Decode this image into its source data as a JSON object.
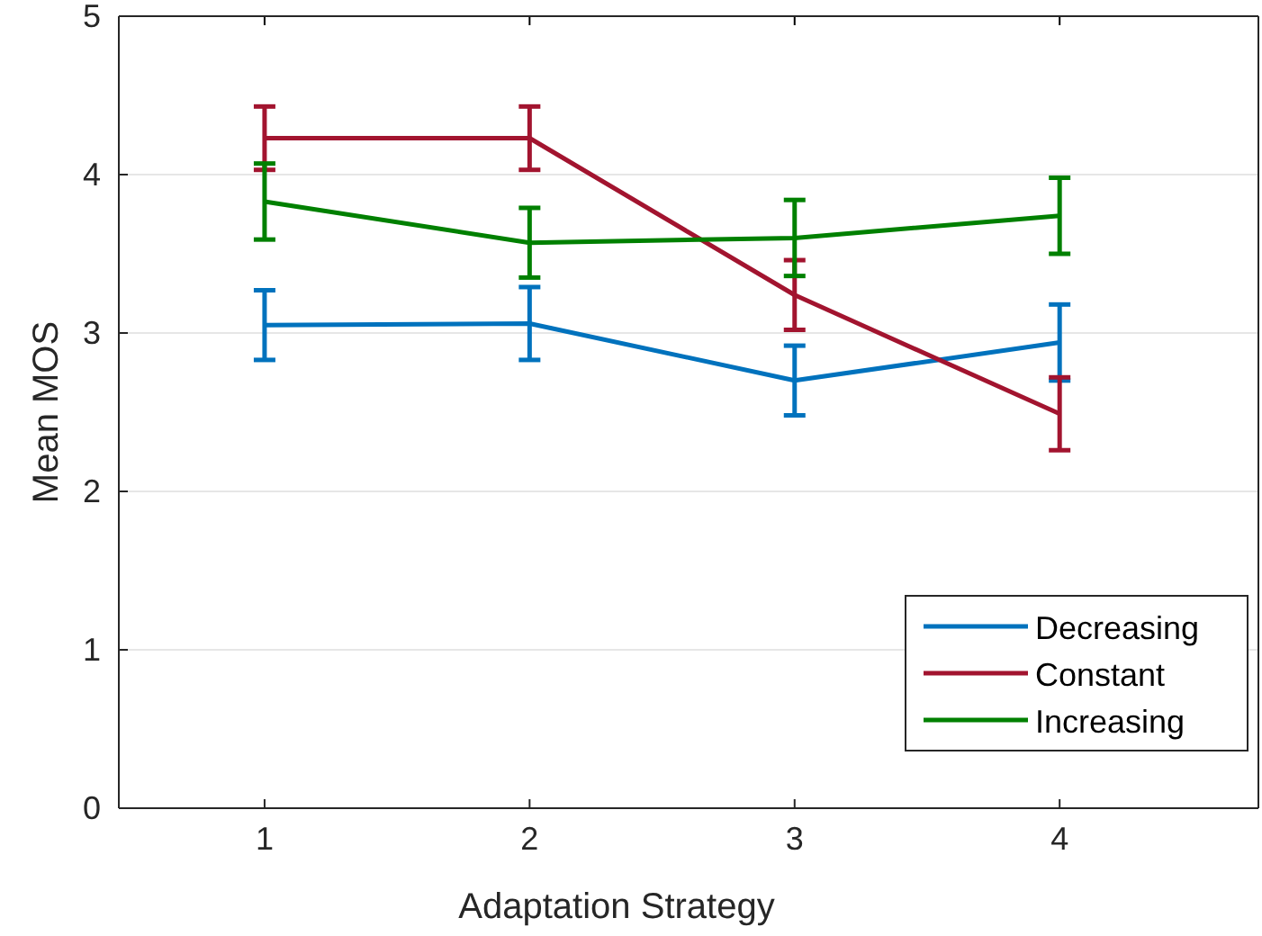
{
  "chart_data": {
    "type": "line",
    "xlabel": "Adaptation Strategy",
    "ylabel": "Mean MOS",
    "x": [
      1,
      2,
      3,
      4
    ],
    "xlim": [
      0.45,
      4.75
    ],
    "xticks": [
      1,
      2,
      3,
      4
    ],
    "ylim": [
      0,
      5
    ],
    "yticks": [
      0,
      1,
      2,
      3,
      4,
      5
    ],
    "grid": "y",
    "legend": "bottom right",
    "marker": "none",
    "line_style": "solid",
    "series": [
      {
        "name": "Decreasing",
        "color": "#0072bd",
        "values": [
          3.05,
          3.06,
          2.7,
          2.94
        ],
        "errors": [
          0.22,
          0.23,
          0.22,
          0.24
        ]
      },
      {
        "name": "Constant",
        "color": "#a2142f",
        "values": [
          4.23,
          4.23,
          3.24,
          2.49
        ],
        "errors": [
          0.2,
          0.2,
          0.22,
          0.23
        ]
      },
      {
        "name": "Increasing",
        "color": "#008000",
        "values": [
          3.83,
          3.57,
          3.6,
          3.74
        ],
        "errors": [
          0.24,
          0.22,
          0.24,
          0.24
        ]
      }
    ]
  }
}
